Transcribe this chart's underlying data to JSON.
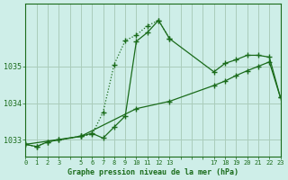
{
  "title": "Graphe pression niveau de la mer (hPa)",
  "bg_color": "#ceeee8",
  "grid_color": "#aaccbb",
  "line_color": "#1a6b1a",
  "xlim": [
    0,
    23
  ],
  "ylim": [
    1032.55,
    1036.7
  ],
  "yticks": [
    1033,
    1034,
    1035
  ],
  "xtick_labels": [
    "0",
    "1",
    "2",
    "3",
    "",
    "5",
    "6",
    "7",
    "8",
    "9",
    "10",
    "11",
    "12",
    "13",
    "",
    "",
    "",
    "17",
    "18",
    "19",
    "20",
    "21",
    "22",
    "23"
  ],
  "xtick_positions": [
    0,
    1,
    2,
    3,
    4,
    5,
    6,
    7,
    8,
    9,
    10,
    11,
    12,
    13,
    14,
    15,
    16,
    17,
    18,
    19,
    20,
    21,
    22,
    23
  ],
  "series_dotted": {
    "x": [
      0,
      1,
      2,
      3,
      5,
      6,
      7,
      8,
      9,
      10,
      11,
      12,
      13
    ],
    "y": [
      1032.88,
      1032.82,
      1032.95,
      1033.0,
      1033.1,
      1033.15,
      1033.75,
      1035.05,
      1035.7,
      1035.85,
      1036.1,
      1036.25,
      1035.75
    ]
  },
  "series_solid": {
    "x": [
      0,
      1,
      2,
      3,
      5,
      6,
      7,
      8,
      9,
      10,
      11,
      12,
      13,
      17,
      18,
      19,
      20,
      21,
      22,
      23
    ],
    "y": [
      1032.88,
      1032.82,
      1032.95,
      1033.0,
      1033.1,
      1033.18,
      1033.05,
      1033.35,
      1033.65,
      1035.68,
      1035.92,
      1036.25,
      1035.75,
      1034.85,
      1035.08,
      1035.18,
      1035.3,
      1035.3,
      1035.25,
      1034.15
    ]
  },
  "series_linear": {
    "x": [
      0,
      5,
      10,
      13,
      17,
      18,
      19,
      20,
      21,
      22,
      23
    ],
    "y": [
      1032.88,
      1033.1,
      1033.85,
      1034.05,
      1034.48,
      1034.6,
      1034.75,
      1034.88,
      1035.0,
      1035.12,
      1034.15
    ]
  }
}
